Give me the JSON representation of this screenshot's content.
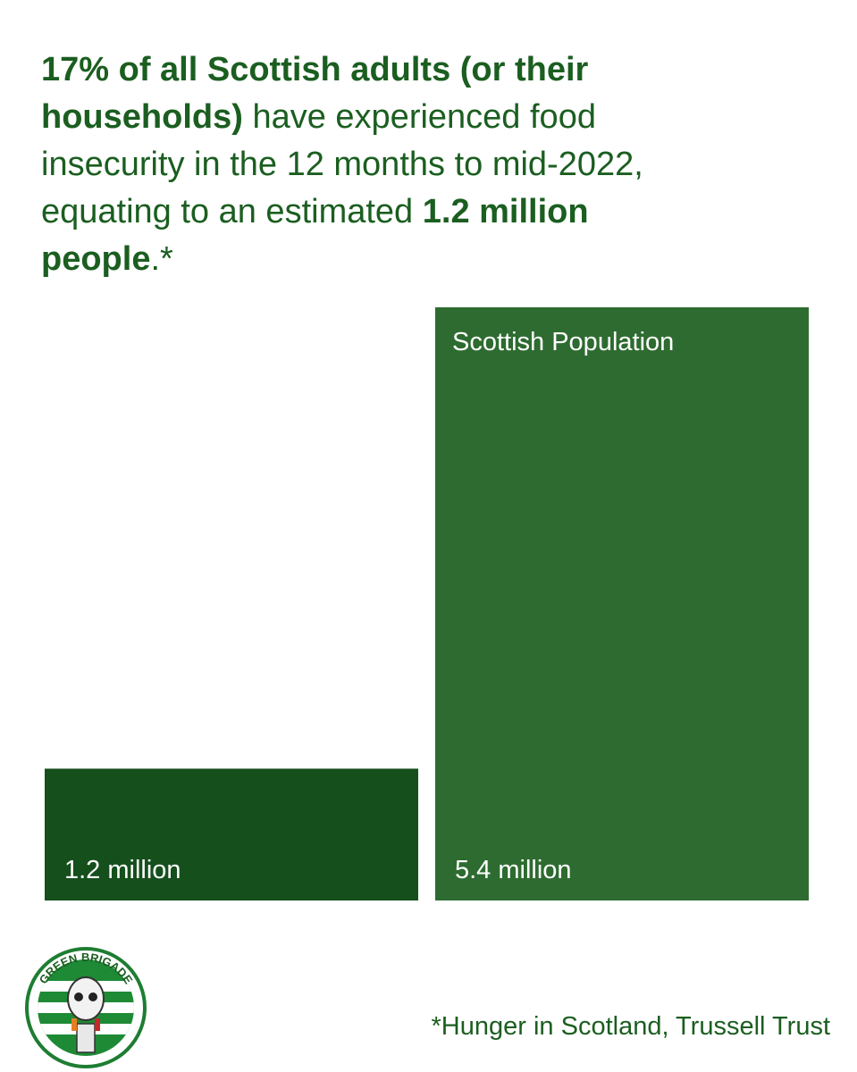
{
  "chart_data": {
    "type": "bar",
    "title": [
      {
        "text": "17% of all Scottish adults (or their households)",
        "bold": true
      },
      {
        "text": "have experienced food insecurity in the 12 months to mid-2022, equating to an estimated",
        "bold": false
      },
      {
        "text": "1.2 million people",
        "bold": true
      },
      {
        "text": ".*",
        "bold": false
      }
    ],
    "categories": [
      null,
      "Scottish Population"
    ],
    "values": [
      1.2,
      5.4
    ],
    "value_labels": [
      "1.2 million",
      "5.4 million"
    ],
    "colors": [
      "#154f1c",
      "#2e6b30"
    ],
    "footnote": "*Hunger in Scotland, Trussell Trust",
    "logo_text": "GREEN BRIGADE"
  }
}
